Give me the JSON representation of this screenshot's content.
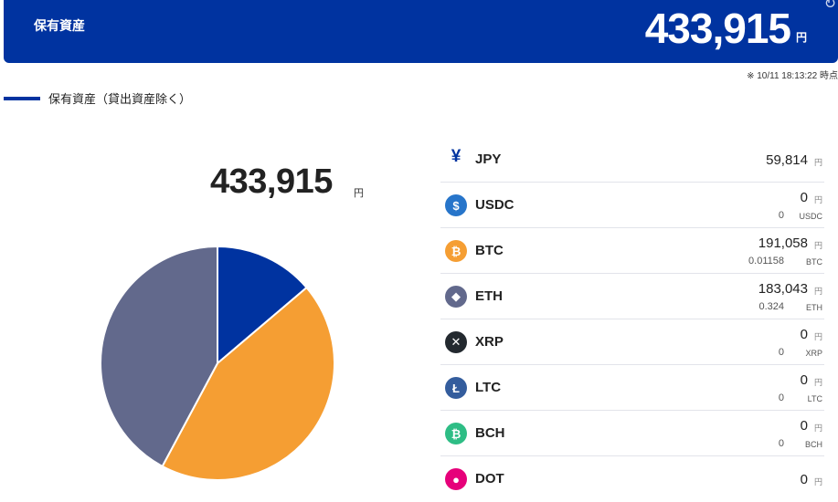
{
  "header": {
    "title": "保有資産",
    "total": "433,915",
    "unit": "円",
    "refresh_icon": "refresh-icon"
  },
  "timestamp": "※ 10/11 18:13:22 時点",
  "section": {
    "label": "保有資産（貸出資産除く）"
  },
  "summary": {
    "total": "433,915",
    "unit": "円"
  },
  "colors": {
    "brand": "#0033a0",
    "jpy": "#0033a0",
    "btc": "#f59e33",
    "eth": "#62698c"
  },
  "chart_data": {
    "type": "pie",
    "unit": "円",
    "slices": [
      {
        "name": "JPY",
        "value": 59814
      },
      {
        "name": "USDC",
        "value": 0
      },
      {
        "name": "BTC",
        "value": 191058
      },
      {
        "name": "ETH",
        "value": 183043
      },
      {
        "name": "XRP",
        "value": 0
      },
      {
        "name": "LTC",
        "value": 0
      },
      {
        "name": "BCH",
        "value": 0
      },
      {
        "name": "DOT",
        "value": 0
      }
    ]
  },
  "assets": [
    {
      "name": "JPY",
      "icon": "yen-icon",
      "glyph": "¥",
      "color": "#0033a0",
      "value": "59,814",
      "unit": "円"
    },
    {
      "name": "USDC",
      "icon": "usdc-icon",
      "glyph": "$",
      "color": "#2775ca",
      "value": "0",
      "unit": "円",
      "qty": "0",
      "qty_unit": "USDC"
    },
    {
      "name": "BTC",
      "icon": "bitcoin-icon",
      "glyph": "₿",
      "color": "#f59e33",
      "value": "191,058",
      "unit": "円",
      "qty": "0.01158",
      "qty_unit": "BTC"
    },
    {
      "name": "ETH",
      "icon": "ethereum-icon",
      "glyph": "◆",
      "color": "#62698c",
      "value": "183,043",
      "unit": "円",
      "qty": "0.324",
      "qty_unit": "ETH"
    },
    {
      "name": "XRP",
      "icon": "xrp-icon",
      "glyph": "✕",
      "color": "#23292f",
      "value": "0",
      "unit": "円",
      "qty": "0",
      "qty_unit": "XRP"
    },
    {
      "name": "LTC",
      "icon": "litecoin-icon",
      "glyph": "Ł",
      "color": "#345d9d",
      "value": "0",
      "unit": "円",
      "qty": "0",
      "qty_unit": "LTC"
    },
    {
      "name": "BCH",
      "icon": "bitcoin-cash-icon",
      "glyph": "₿",
      "color": "#2ebd85",
      "value": "0",
      "unit": "円",
      "qty": "0",
      "qty_unit": "BCH"
    },
    {
      "name": "DOT",
      "icon": "polkadot-icon",
      "glyph": "●",
      "color": "#e6007a",
      "value": "0",
      "unit": "円"
    }
  ]
}
